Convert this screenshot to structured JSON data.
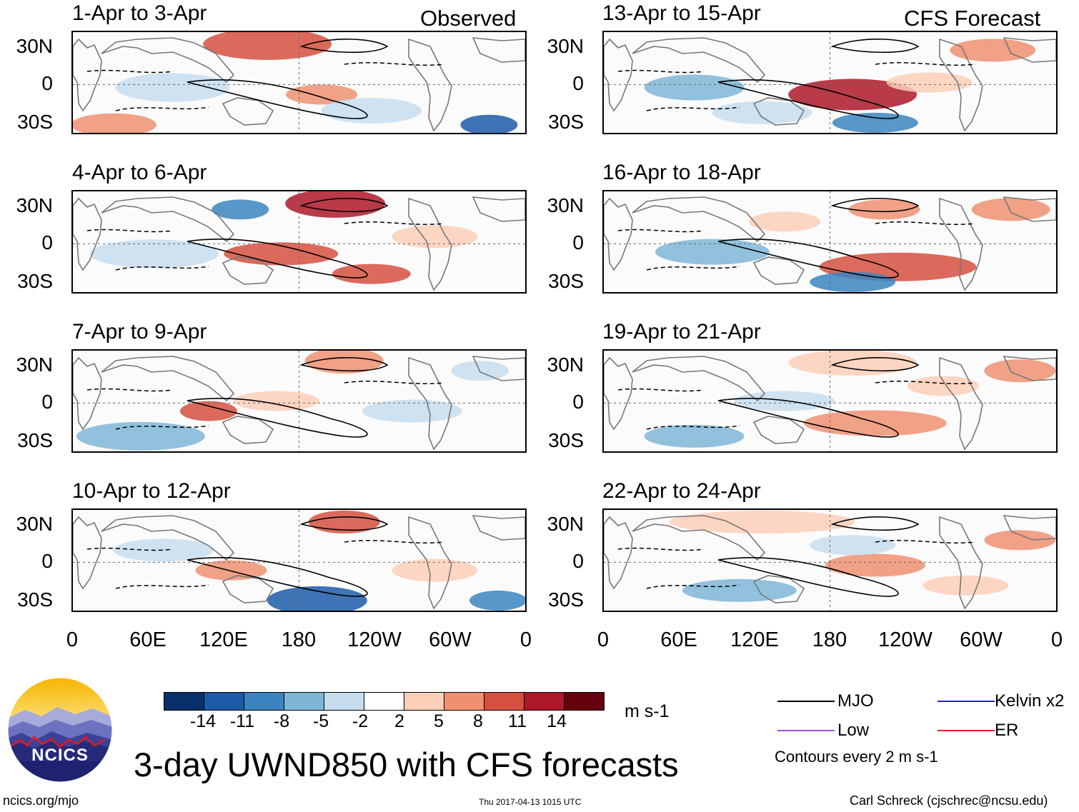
{
  "title": "3-day UWND850 with CFS forecasts",
  "labels": {
    "observed": "Observed",
    "forecast": "CFS Forecast",
    "units": "m s-1",
    "contour_note": "Contours every 2 m s-1",
    "site": "ncics.org/mjo",
    "timestamp": "Thu 2017-04-13 1015 UTC",
    "author": "Carl Schreck (cjschrec@ncsu.edu)",
    "logo_text": "NCICS"
  },
  "panels_left": [
    {
      "period": "1-Apr to 3-Apr"
    },
    {
      "period": "4-Apr to 6-Apr"
    },
    {
      "period": "7-Apr to 9-Apr"
    },
    {
      "period": "10-Apr to 12-Apr"
    }
  ],
  "panels_right": [
    {
      "period": "13-Apr to 15-Apr"
    },
    {
      "period": "16-Apr to 18-Apr"
    },
    {
      "period": "19-Apr to 21-Apr"
    },
    {
      "period": "22-Apr to 24-Apr"
    }
  ],
  "lat_ticks": [
    "30N",
    "0",
    "30S"
  ],
  "lon_ticks": [
    "0",
    "60E",
    "120E",
    "180",
    "120W",
    "60W",
    "0"
  ],
  "colorbar": {
    "ticks": [
      "-14",
      "-11",
      "-8",
      "-5",
      "-2",
      "2",
      "5",
      "8",
      "11",
      "14"
    ],
    "colors": [
      "#08306b",
      "#1c5ba8",
      "#3a85c0",
      "#7fb6d8",
      "#c7ddee",
      "#ffffff",
      "#fbcfb8",
      "#ef9171",
      "#d6503f",
      "#ad1828",
      "#67000d"
    ]
  },
  "legend": [
    {
      "name": "MJO",
      "color": "#000000"
    },
    {
      "name": "Kelvin x2",
      "color": "#1f24d6"
    },
    {
      "name": "Low",
      "color": "#a24fe0"
    },
    {
      "name": "ER",
      "color": "#e02020"
    }
  ]
}
